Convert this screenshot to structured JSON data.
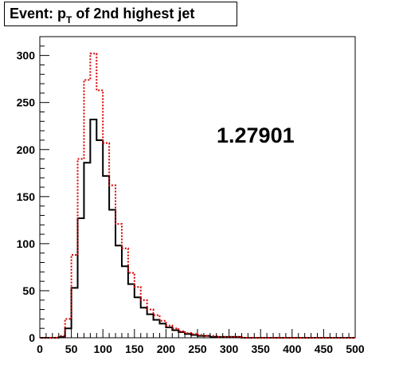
{
  "title": {
    "prefix": "Event: p",
    "subscript": "T",
    "suffix": " of 2nd highest jet"
  },
  "chart_data": {
    "type": "line",
    "step": true,
    "xlim": [
      0,
      500
    ],
    "ylim": [
      0,
      320
    ],
    "bin_width": 10,
    "x_ticks": [
      0,
      50,
      100,
      150,
      200,
      250,
      300,
      350,
      400,
      450,
      500
    ],
    "y_ticks": [
      0,
      50,
      100,
      150,
      200,
      250,
      300
    ],
    "grid": false,
    "annotation": "1.27901",
    "series": [
      {
        "color": "#000000",
        "style": "solid",
        "bin_edges": [
          0,
          10,
          20,
          30,
          40,
          50,
          60,
          70,
          80,
          90,
          100,
          110,
          120,
          130,
          140,
          150,
          160,
          170,
          180,
          190,
          200,
          210,
          220,
          230,
          240,
          250,
          260,
          270,
          280,
          290,
          300,
          310,
          320,
          330,
          340,
          350,
          360,
          370,
          380,
          390,
          400,
          410,
          420,
          430,
          440,
          450,
          460,
          470,
          480,
          490,
          500
        ],
        "values": [
          0,
          0,
          0,
          1,
          10,
          53,
          127,
          186,
          232,
          210,
          172,
          136,
          98,
          76,
          57,
          43,
          32,
          25,
          19,
          15,
          11,
          8,
          6,
          4,
          3,
          2,
          2,
          1,
          1,
          1,
          1,
          1,
          0,
          0,
          0,
          0,
          0,
          0,
          0,
          0,
          0,
          0,
          0,
          0,
          0,
          0,
          0,
          0,
          0,
          0
        ]
      },
      {
        "color": "#dd0000",
        "style": "dotted",
        "bin_edges": [
          0,
          10,
          20,
          30,
          40,
          50,
          60,
          70,
          80,
          90,
          100,
          110,
          120,
          130,
          140,
          150,
          160,
          170,
          180,
          190,
          200,
          210,
          220,
          230,
          240,
          250,
          260,
          270,
          280,
          290,
          300,
          310,
          320,
          330,
          340,
          350,
          360,
          370,
          380,
          390,
          400,
          410,
          420,
          430,
          440,
          450,
          460,
          470,
          480,
          490,
          500
        ],
        "values": [
          0,
          0,
          0,
          2,
          20,
          88,
          190,
          274,
          302,
          263,
          207,
          162,
          121,
          95,
          69,
          54,
          40,
          30,
          24,
          18,
          13,
          10,
          7,
          5,
          4,
          3,
          2,
          2,
          1,
          1,
          1,
          1,
          0,
          0,
          0,
          0,
          0,
          0,
          0,
          0,
          0,
          0,
          0,
          0,
          0,
          0,
          0,
          0,
          0,
          0
        ]
      }
    ]
  }
}
